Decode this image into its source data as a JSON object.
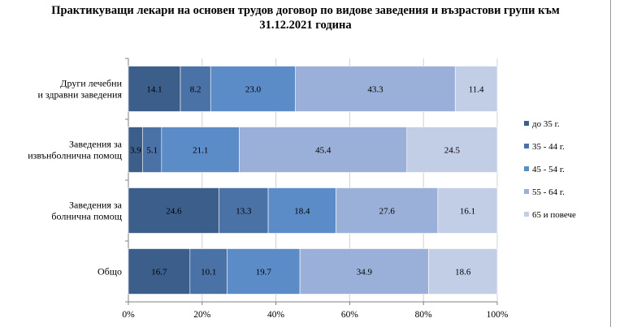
{
  "chart_data": {
    "type": "bar",
    "orientation": "horizontal",
    "stacked": "percent",
    "title_lines": [
      "Практикуващи лекари на основен трудов договор по видове заведения и възрастови групи към",
      "31.12.2021 година"
    ],
    "categories": [
      [
        "Други лечебни",
        "и здравни заведения"
      ],
      [
        "Заведения за",
        "извънболнична помощ"
      ],
      [
        "Заведения за",
        "болнична помощ"
      ],
      [
        "Общо"
      ]
    ],
    "series": [
      {
        "name": "до 35 г.",
        "color": "#3b5e8a",
        "values": [
          14.1,
          3.9,
          24.6,
          16.7
        ]
      },
      {
        "name": "35 - 44 г.",
        "color": "#4a72a6",
        "values": [
          8.2,
          5.1,
          13.3,
          10.1
        ]
      },
      {
        "name": "45 - 54 г.",
        "color": "#5b8cc8",
        "values": [
          23.0,
          21.1,
          18.4,
          19.7
        ]
      },
      {
        "name": "55 - 64 г.",
        "color": "#9ab0d8",
        "values": [
          43.3,
          45.4,
          27.6,
          34.9
        ]
      },
      {
        "name": "65 и повече",
        "color": "#c2cde6",
        "values": [
          11.4,
          24.5,
          16.1,
          18.6
        ]
      }
    ],
    "x_ticks": [
      "0%",
      "20%",
      "40%",
      "60%",
      "80%",
      "100%"
    ],
    "xlim": [
      0,
      100
    ],
    "legend_position": "right",
    "grid": "vertical"
  }
}
